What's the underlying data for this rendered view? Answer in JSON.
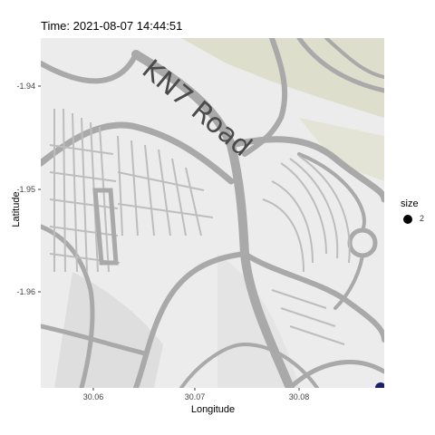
{
  "title": "Time: 2021-08-07 14:44:51",
  "map": {
    "road_label": "KN7 Road",
    "x_ticks": [
      "30.06",
      "30.07",
      "30.08"
    ],
    "y_ticks": [
      "-1.94",
      "-1.95",
      "-1.96"
    ],
    "xlabel": "Longitude",
    "ylabel": "Latitude",
    "legend": {
      "title": "size",
      "label": "2"
    },
    "colors": {
      "road": "#a9a9a9",
      "background": "#ececec",
      "green_area": "#d9dcc4",
      "point": "#1a1f6b"
    }
  }
}
